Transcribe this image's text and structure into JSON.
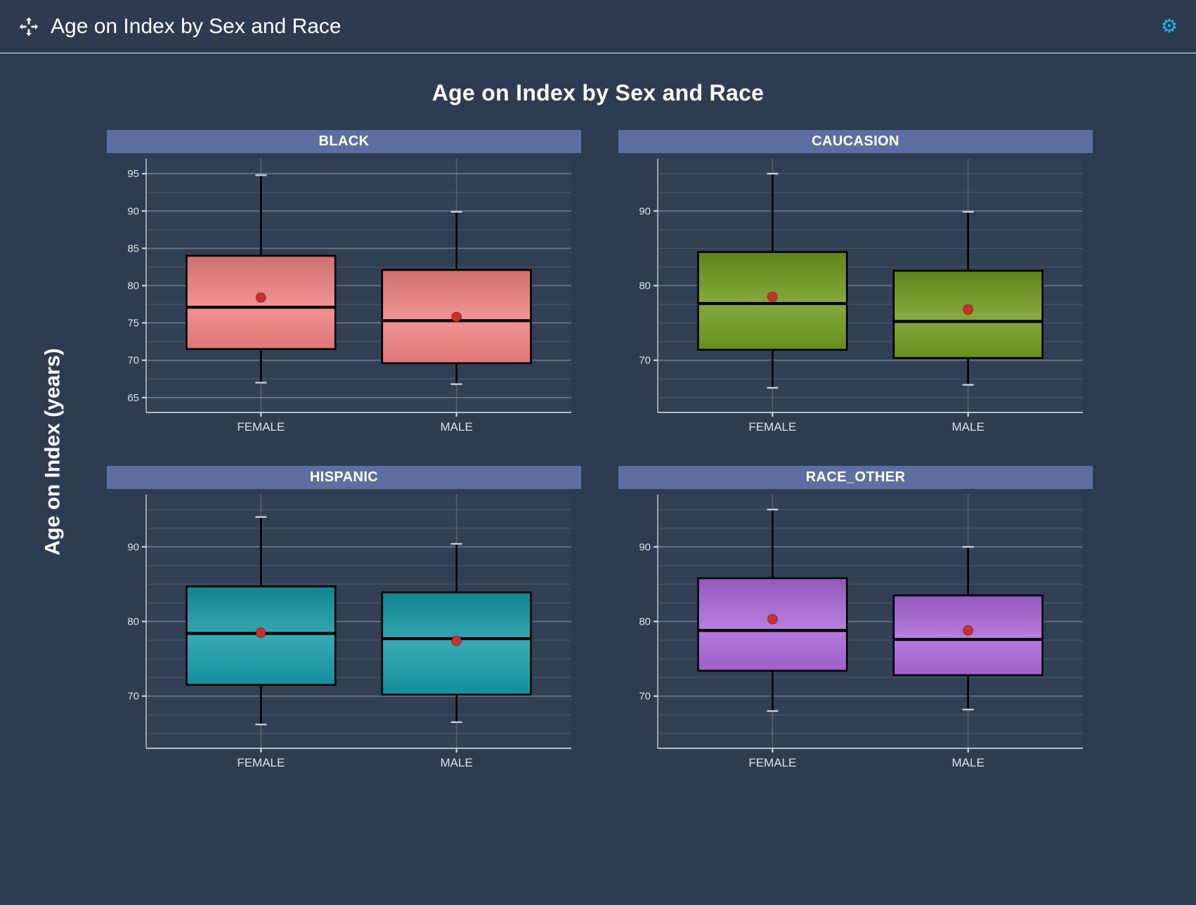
{
  "header": {
    "title": "Age on Index by Sex and Race",
    "gear_glyph": "⚙"
  },
  "chart_data": {
    "type": "boxplot",
    "title": "Age on Index by Sex and Race",
    "ylabel": "Age on Index (years)",
    "ylim": [
      63,
      97
    ],
    "categories": [
      "FEMALE",
      "MALE"
    ],
    "mean_marker_color": "#cf2e2e",
    "grid": true,
    "facets": [
      {
        "name": "BLACK",
        "color": "#ef8080",
        "yticks": [
          65,
          70,
          75,
          80,
          85,
          90,
          95
        ],
        "groups": [
          {
            "label": "FEMALE",
            "whisker_low": 67.0,
            "q1": 71.5,
            "median": 77.1,
            "q3": 84.0,
            "whisker_high": 94.8,
            "mean": 78.4
          },
          {
            "label": "MALE",
            "whisker_low": 66.8,
            "q1": 69.6,
            "median": 75.3,
            "q3": 82.1,
            "whisker_high": 89.9,
            "mean": 75.8
          }
        ]
      },
      {
        "name": "CAUCASION",
        "color": "#6f9a1d",
        "yticks": [
          70,
          80,
          90
        ],
        "groups": [
          {
            "label": "FEMALE",
            "whisker_low": 66.3,
            "q1": 71.4,
            "median": 77.6,
            "q3": 84.5,
            "whisker_high": 95.0,
            "mean": 78.5
          },
          {
            "label": "MALE",
            "whisker_low": 66.7,
            "q1": 70.3,
            "median": 75.2,
            "q3": 82.0,
            "whisker_high": 89.9,
            "mean": 76.8
          }
        ]
      },
      {
        "name": "HISPANIC",
        "color": "#149aa8",
        "yticks": [
          70,
          80,
          90
        ],
        "groups": [
          {
            "label": "FEMALE",
            "whisker_low": 66.2,
            "q1": 71.5,
            "median": 78.4,
            "q3": 84.7,
            "whisker_high": 94.0,
            "mean": 78.5
          },
          {
            "label": "MALE",
            "whisker_low": 66.5,
            "q1": 70.2,
            "median": 77.7,
            "q3": 83.9,
            "whisker_high": 90.4,
            "mean": 77.4
          }
        ]
      },
      {
        "name": "RACE_OTHER",
        "color": "#aa66d8",
        "yticks": [
          70,
          80,
          90
        ],
        "groups": [
          {
            "label": "FEMALE",
            "whisker_low": 68.0,
            "q1": 73.4,
            "median": 78.8,
            "q3": 85.8,
            "whisker_high": 95.0,
            "mean": 80.3
          },
          {
            "label": "MALE",
            "whisker_low": 68.2,
            "q1": 72.8,
            "median": 77.6,
            "q3": 83.5,
            "whisker_high": 90.0,
            "mean": 78.8
          }
        ]
      }
    ]
  }
}
